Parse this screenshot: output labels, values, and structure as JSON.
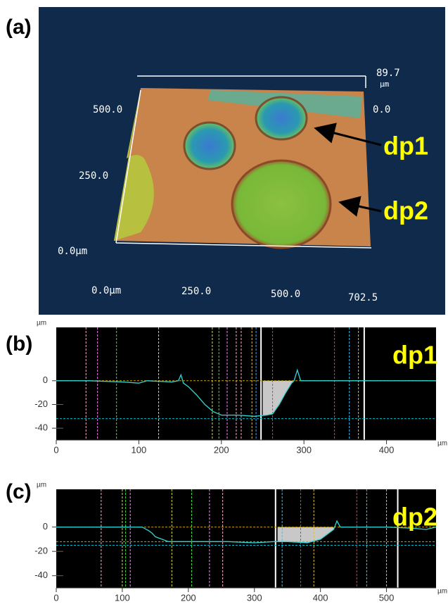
{
  "image": {
    "label": "(a)",
    "z_max": "89.7",
    "z_unit": "µm",
    "y_labels": [
      "500.0",
      "250.0",
      "0.0µm"
    ],
    "z_zero": "0.0",
    "x_labels": [
      "0.0µm",
      "250.0",
      "500.0",
      "702.5"
    ],
    "annotations": [
      "dp1",
      "dp2"
    ]
  },
  "chart_data": [
    {
      "type": "line",
      "label": "(b)",
      "annotation": "dp1",
      "ylabel": "µm",
      "xlabel": "µm",
      "xlim": [
        0,
        460
      ],
      "xticks": [
        0,
        100,
        200,
        300,
        400
      ],
      "ylim": [
        -50,
        45
      ],
      "yticks": [
        0,
        -20,
        -40
      ],
      "x": [
        0,
        40,
        80,
        100,
        110,
        140,
        148,
        151,
        154,
        160,
        170,
        180,
        190,
        200,
        220,
        240,
        255,
        262,
        270,
        278,
        285,
        288,
        292,
        296,
        320,
        360,
        400,
        430,
        460
      ],
      "values": [
        0,
        0,
        -1,
        -2,
        0,
        -1,
        0,
        5,
        -2,
        -5,
        -12,
        -20,
        -26,
        -29,
        -29,
        -30,
        -29,
        -28,
        -20,
        -10,
        -2,
        0,
        9,
        0,
        0,
        0,
        0,
        0,
        0
      ],
      "color": "#33d6d6",
      "shade": [
        250,
        288
      ],
      "shade_color": "#c8c8c8",
      "hlines": [
        {
          "y": 0,
          "color": "#c8a000"
        },
        {
          "y": -32,
          "color": "#00b8c8"
        }
      ],
      "cursors": [
        {
          "x": 36,
          "color": "#ffb0c0"
        },
        {
          "x": 50,
          "color": "#ff80ff"
        },
        {
          "x": 73,
          "color": "#40e040"
        },
        {
          "x": 124,
          "color": "#e0e040"
        },
        {
          "x": 189,
          "color": "#e0e040"
        },
        {
          "x": 197,
          "color": "#40e040"
        },
        {
          "x": 207,
          "color": "#ff80ff"
        },
        {
          "x": 218,
          "color": "#ffb0c0"
        },
        {
          "x": 224,
          "color": "#ffb0c0"
        },
        {
          "x": 237,
          "color": "#e0c040"
        },
        {
          "x": 242,
          "color": "#40a0ff"
        },
        {
          "x": 248,
          "color": "#ffffff"
        },
        {
          "x": 262,
          "color": "#ff3030"
        },
        {
          "x": 337,
          "color": "#ff3030"
        },
        {
          "x": 355,
          "color": "#40c0ff"
        },
        {
          "x": 366,
          "color": "#e0c040"
        },
        {
          "x": 373,
          "color": "#ffffff"
        }
      ]
    },
    {
      "type": "line",
      "label": "(c)",
      "annotation": "dp2",
      "ylabel": "µm",
      "xlabel": "µm",
      "xlim": [
        0,
        575
      ],
      "xticks": [
        0,
        100,
        200,
        300,
        400,
        500
      ],
      "ylim": [
        -50,
        31
      ],
      "yticks": [
        0,
        -20,
        -40
      ],
      "x": [
        0,
        60,
        130,
        140,
        145,
        150,
        160,
        170,
        200,
        260,
        300,
        330,
        350,
        380,
        400,
        410,
        420,
        425,
        430,
        470,
        500,
        540,
        560,
        575
      ],
      "values": [
        0,
        0,
        0,
        -3,
        -5,
        -8,
        -10,
        -12,
        -12,
        -12,
        -13,
        -12,
        -12,
        -13,
        -10,
        -6,
        -2,
        5,
        0,
        0,
        0,
        -1,
        -2,
        0
      ],
      "color": "#33d6d6",
      "shade": [
        335,
        420
      ],
      "shade_color": "#c8c8c8",
      "hlines": [
        {
          "y": 0,
          "color": "#c8a000"
        },
        {
          "y": -12,
          "color": "#c8a000"
        },
        {
          "y": -15,
          "color": "#00b8c8"
        }
      ],
      "cursors": [
        {
          "x": 68,
          "color": "#ffb0c0"
        },
        {
          "x": 100,
          "color": "#e0e040"
        },
        {
          "x": 105,
          "color": "#40e040"
        },
        {
          "x": 112,
          "color": "#ff80ff"
        },
        {
          "x": 175,
          "color": "#e0e040"
        },
        {
          "x": 205,
          "color": "#40e040"
        },
        {
          "x": 232,
          "color": "#ff80ff"
        },
        {
          "x": 252,
          "color": "#ffb0c0"
        },
        {
          "x": 332,
          "color": "#ffffff"
        },
        {
          "x": 342,
          "color": "#40c0ff"
        },
        {
          "x": 370,
          "color": "#ff3030"
        },
        {
          "x": 390,
          "color": "#e0c040"
        },
        {
          "x": 455,
          "color": "#ff3030"
        },
        {
          "x": 470,
          "color": "#40c0ff"
        },
        {
          "x": 500,
          "color": "#e0c040"
        },
        {
          "x": 517,
          "color": "#ffffff"
        }
      ]
    }
  ]
}
